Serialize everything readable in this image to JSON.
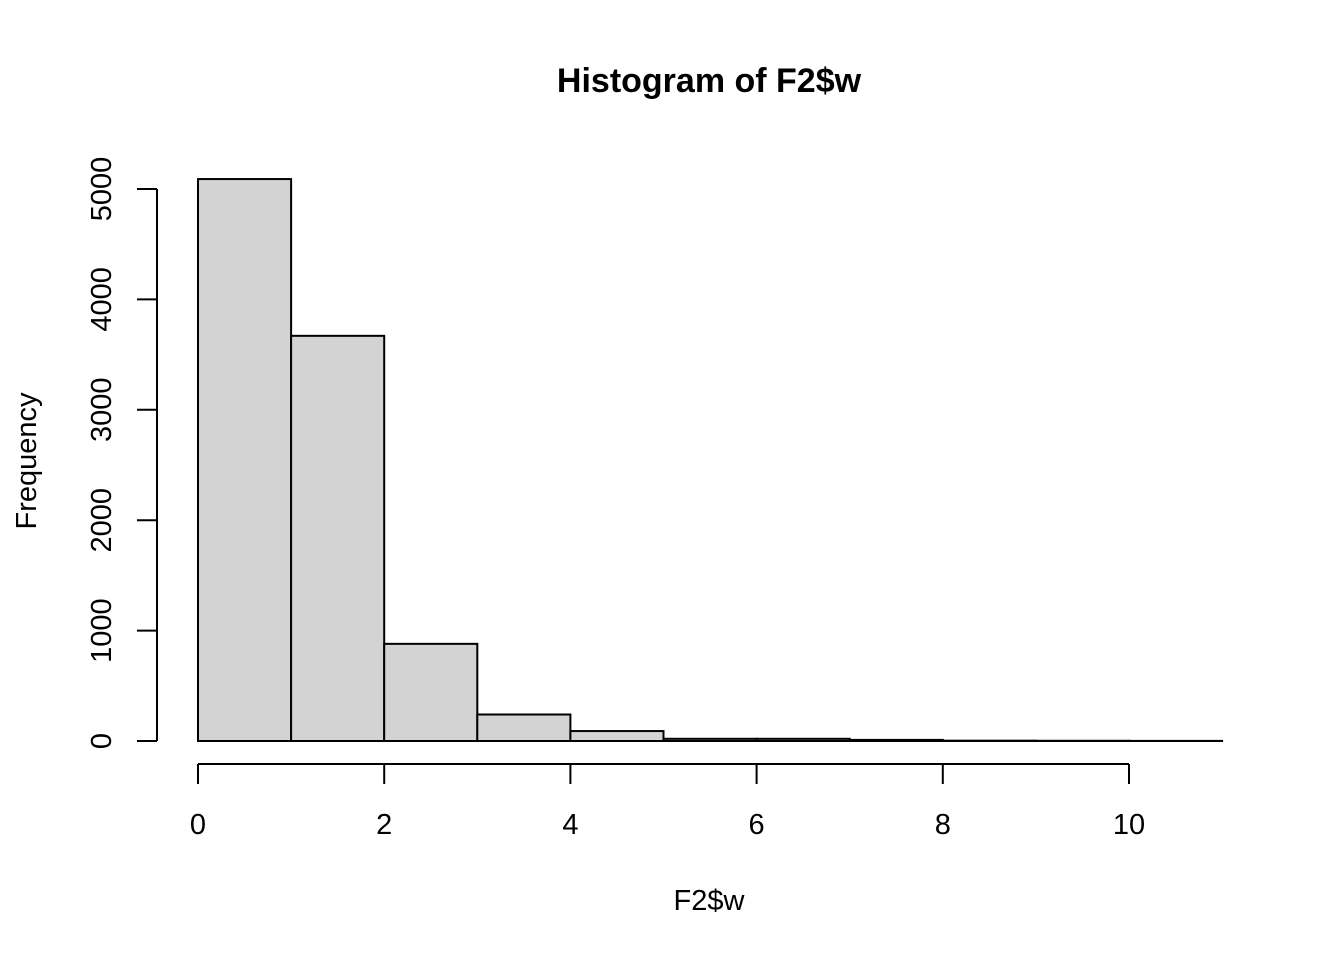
{
  "colors": {
    "bar_fill": "#d3d3d3",
    "bar_stroke": "#000000",
    "background": "#ffffff"
  },
  "chart_data": {
    "type": "bar",
    "title": "Histogram of F2$w",
    "xlabel": "F2$w",
    "ylabel": "Frequency",
    "bin_edges": [
      0,
      1,
      2,
      3,
      4,
      5,
      6,
      7,
      8,
      9,
      10,
      11
    ],
    "values": [
      5090,
      3670,
      880,
      240,
      90,
      20,
      20,
      10,
      3,
      2,
      1
    ],
    "xlim": [
      0,
      11
    ],
    "ylim": [
      0,
      5090
    ],
    "x_ticks": [
      0,
      2,
      4,
      6,
      8,
      10
    ],
    "x_tick_labels": [
      "0",
      "2",
      "4",
      "6",
      "8",
      "10"
    ],
    "y_ticks": [
      0,
      1000,
      2000,
      3000,
      4000,
      5000
    ],
    "y_tick_labels": [
      "0",
      "1000",
      "2000",
      "3000",
      "4000",
      "5000"
    ],
    "grid": false,
    "legend": "none"
  }
}
